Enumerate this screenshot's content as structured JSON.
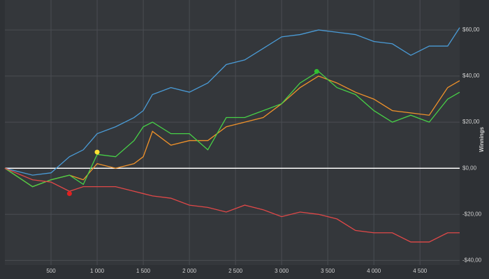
{
  "chart_data": {
    "type": "line",
    "y_label": "Winnings",
    "x": [
      0,
      300,
      500,
      700,
      850,
      1000,
      1200,
      1400,
      1500,
      1600,
      1800,
      2000,
      2200,
      2400,
      2600,
      2800,
      3000,
      3200,
      3400,
      3600,
      3800,
      4000,
      4200,
      4400,
      4600,
      4800,
      4930
    ],
    "series": [
      {
        "color": "#4a9bd6",
        "values": [
          0,
          -3,
          -2,
          5,
          8,
          15,
          18,
          22,
          25,
          32,
          35,
          33,
          37,
          45,
          47,
          52,
          57,
          58,
          60,
          59,
          58,
          55,
          54,
          49,
          53,
          53,
          61
        ]
      },
      {
        "color": "#f0922a",
        "values": [
          0,
          -8,
          -5,
          -3,
          -5,
          2,
          0,
          2,
          5,
          16,
          10,
          12,
          12,
          18,
          20,
          22,
          28,
          35,
          40,
          37,
          33,
          30,
          25,
          24,
          23,
          35,
          38
        ]
      },
      {
        "color": "#47d147",
        "values": [
          0,
          -8,
          -5,
          -3,
          -7,
          6,
          5,
          12,
          18,
          20,
          15,
          15,
          8,
          22,
          22,
          25,
          28,
          37,
          42,
          35,
          32,
          25,
          20,
          23,
          20,
          30,
          33
        ]
      },
      {
        "color": "#e04848",
        "values": [
          0,
          -5,
          -6,
          -10,
          -8,
          -8,
          -8,
          -10,
          -11,
          -12,
          -13,
          -16,
          -17,
          -19,
          -16,
          -18,
          -21,
          -19,
          -20,
          -22,
          -27,
          -28,
          -28,
          -32,
          -32,
          -28,
          -28
        ]
      }
    ],
    "markers": [
      {
        "x": 1000,
        "y": 7,
        "color": "#ffe033"
      },
      {
        "x": 700,
        "y": -11,
        "color": "#e02020"
      },
      {
        "x": 3380,
        "y": 42,
        "color": "#30c030"
      }
    ],
    "zero_line": 0,
    "xlim": [
      0,
      4930
    ],
    "ylim": [
      -42,
      73
    ],
    "xticks": [
      500,
      {
        "value": 1000,
        "label": "1 000"
      },
      {
        "value": 1500,
        "label": "1 500"
      },
      {
        "value": 2000,
        "label": "2 000"
      },
      {
        "value": 2500,
        "label": "2 500"
      },
      {
        "value": 3000,
        "label": "3 000"
      },
      {
        "value": 3500,
        "label": "3 500"
      },
      {
        "value": 4000,
        "label": "4 000"
      },
      {
        "value": 4500,
        "label": "4 500"
      }
    ],
    "yticks": [
      {
        "value": -40,
        "label": "-$40,00"
      },
      {
        "value": -20,
        "label": "-$20,00"
      },
      {
        "value": 0,
        "label": "$0,00"
      },
      {
        "value": 20,
        "label": "$20,00"
      },
      {
        "value": 40,
        "label": "$40,00"
      },
      {
        "value": 60,
        "label": "$60,00"
      }
    ],
    "grid": true
  }
}
